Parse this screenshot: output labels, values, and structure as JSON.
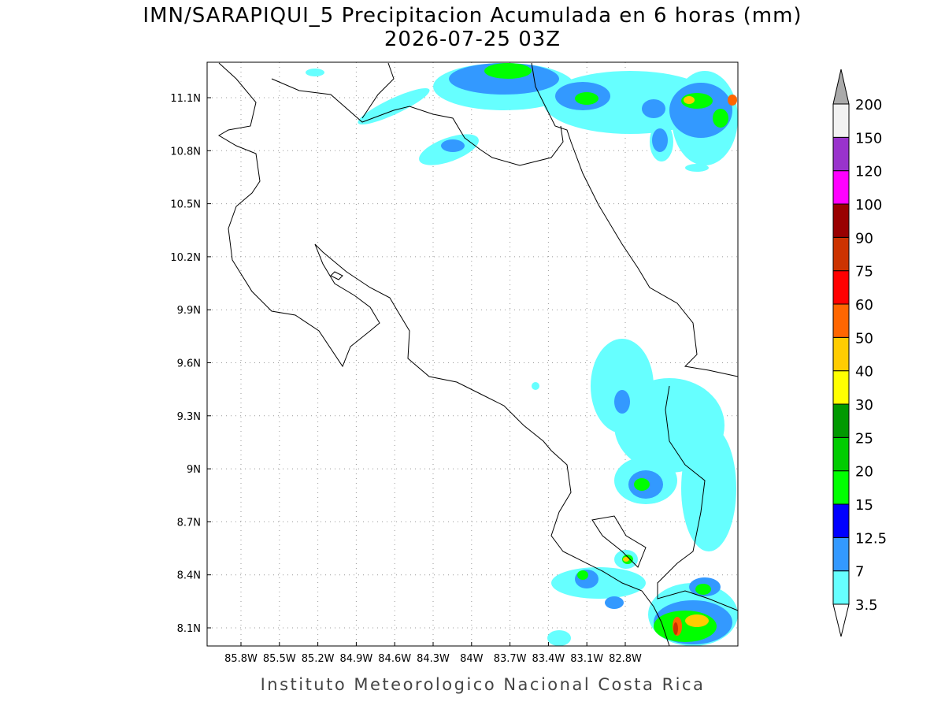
{
  "header": {
    "title": "IMN/SARAPIQUI_5 Precipitacion Acumulada en 6 horas (mm)",
    "subtitle": "2026-07-25 03Z"
  },
  "map": {
    "lon_labels": [
      "85.8W",
      "85.5W",
      "85.2W",
      "84.9W",
      "84.6W",
      "84.3W",
      "84W",
      "83.7W",
      "83.4W",
      "83.1W",
      "82.8W"
    ],
    "lat_labels": [
      "11.1N",
      "10.8N",
      "10.5N",
      "10.2N",
      "9.9N",
      "9.6N",
      "9.3N",
      "9N",
      "8.7N",
      "8.4N",
      "8.1N"
    ],
    "grid": true
  },
  "colorbar": {
    "levels": [
      3.5,
      7,
      12.5,
      15,
      20,
      25,
      30,
      40,
      50,
      60,
      75,
      90,
      100,
      120,
      150,
      200
    ],
    "colors": [
      "#66ffff",
      "#3399ff",
      "#0000ff",
      "#00ff00",
      "#00cc00",
      "#009900",
      "#ffff00",
      "#ffcc00",
      "#ff6600",
      "#ff0000",
      "#cc3300",
      "#990000",
      "#ff00ff",
      "#9933cc",
      "#f2f2f2"
    ],
    "under_color": "#ffffff",
    "over_color": "#aaaaaa"
  },
  "footer": "Instituto Meteorologico Nacional Costa Rica"
}
